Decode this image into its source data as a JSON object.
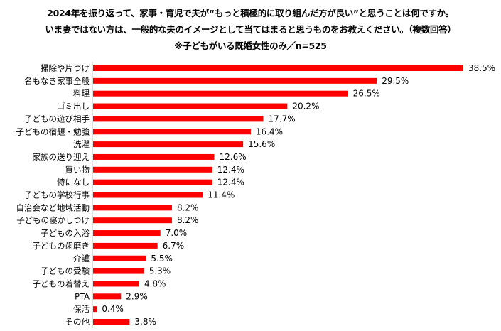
{
  "chart_data": {
    "type": "bar",
    "orientation": "horizontal",
    "title": [
      "2024年を振り返って、家事・育児で夫が“もっと積極的に取り組んだ方が良い”と思うことは何ですか。",
      "いま妻ではない方は、一般的な夫のイメージとして当てはまると思うものをお教えください。（複数回答）",
      "※子どもがいる既婚女性のみ／n=525"
    ],
    "categories": [
      "掃除や片づけ",
      "名もなき家事全般",
      "料理",
      "ゴミ出し",
      "子どもの遊び相手",
      "子どもの宿題・勉強",
      "洗濯",
      "家族の送り迎え",
      "買い物",
      "特になし",
      "子どもの学校行事",
      "自治会など地域活動",
      "子どもの寝かしつけ",
      "子どもの入浴",
      "子どもの歯磨き",
      "介護",
      "子どもの受験",
      "子どもの着替え",
      "PTA",
      "保活",
      "その他"
    ],
    "values": [
      38.5,
      29.5,
      26.5,
      20.2,
      17.7,
      16.4,
      15.6,
      12.6,
      12.4,
      12.4,
      11.4,
      8.2,
      8.2,
      7.0,
      6.7,
      5.5,
      5.3,
      4.8,
      2.9,
      0.4,
      3.8
    ],
    "value_labels": [
      "38.5%",
      "29.5%",
      "26.5%",
      "20.2%",
      "17.7%",
      "16.4%",
      "15.6%",
      "12.6%",
      "12.4%",
      "12.4%",
      "11.4%",
      "8.2%",
      "8.2%",
      "7.0%",
      "6.7%",
      "5.5%",
      "5.3%",
      "4.8%",
      "2.9%",
      "0.4%",
      "3.8%"
    ],
    "unit": "%",
    "xlim": [
      0,
      38.5
    ],
    "bar_color": "#ff0000",
    "axis_color": "#bfbfbf",
    "grid": false,
    "legend": "none"
  }
}
